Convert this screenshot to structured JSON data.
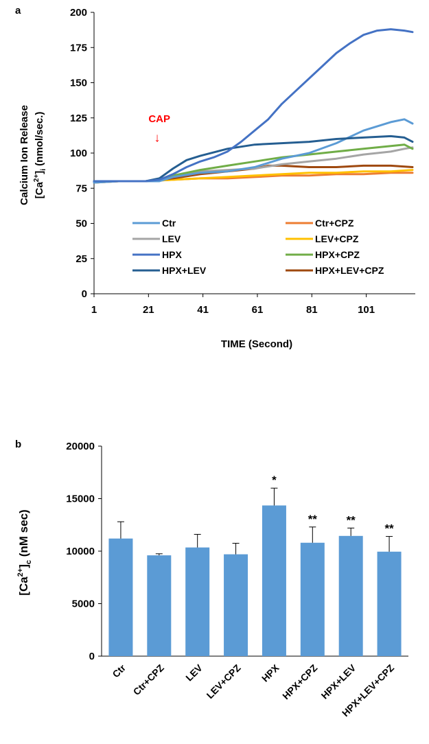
{
  "chart_data": [
    {
      "panel_label": "a",
      "type": "line",
      "xlabel": "TIME (Second)",
      "ylabel_line1": "Calcium Ion Release",
      "ylabel_line2_pre": "[Ca",
      "ylabel_line2_sup": "2+",
      "ylabel_line2_mid": "]",
      "ylabel_line2_sub": "i",
      "ylabel_line2_post": " (nmol/sec.)",
      "xlim": [
        1,
        119
      ],
      "ylim": [
        0,
        200
      ],
      "xticks": [
        1,
        21,
        41,
        61,
        81,
        101
      ],
      "yticks": [
        0,
        25,
        50,
        75,
        100,
        125,
        150,
        175,
        200
      ],
      "annotation": {
        "text": "CAP",
        "arrow": "↓",
        "x": 25,
        "color": "#ff0000"
      },
      "legend_placement": "inside-bottom",
      "grid": false,
      "series": [
        {
          "name": "Ctr",
          "color": "#5b9bd5",
          "x": [
            1,
            10,
            20,
            25,
            30,
            40,
            50,
            60,
            70,
            80,
            90,
            100,
            105,
            110,
            115,
            118
          ],
          "y": [
            79,
            80,
            80,
            80,
            83,
            86,
            87,
            90,
            96,
            100,
            107,
            116,
            119,
            122,
            124,
            121
          ]
        },
        {
          "name": "LEV",
          "color": "#a5a5a5",
          "x": [
            1,
            10,
            20,
            25,
            30,
            40,
            50,
            60,
            70,
            80,
            90,
            100,
            110,
            115,
            118
          ],
          "y": [
            79,
            80,
            80,
            81,
            84,
            87,
            88,
            89,
            92,
            94,
            96,
            99,
            101,
            103,
            104
          ]
        },
        {
          "name": "HPX",
          "color": "#4472c4",
          "x": [
            1,
            10,
            20,
            25,
            30,
            35,
            40,
            45,
            50,
            55,
            60,
            65,
            70,
            75,
            80,
            85,
            90,
            95,
            100,
            105,
            110,
            115,
            118
          ],
          "y": [
            80,
            80,
            80,
            81,
            85,
            90,
            94,
            97,
            101,
            108,
            116,
            124,
            135,
            144,
            153,
            162,
            171,
            178,
            184,
            187,
            188,
            187,
            186
          ]
        },
        {
          "name": "HPX+LEV",
          "color": "#255e91",
          "x": [
            1,
            10,
            20,
            25,
            30,
            35,
            40,
            50,
            60,
            70,
            80,
            90,
            100,
            110,
            115,
            118
          ],
          "y": [
            80,
            80,
            80,
            82,
            89,
            95,
            98,
            103,
            106,
            107,
            108,
            110,
            111,
            112,
            111,
            108
          ]
        },
        {
          "name": "Ctr+CPZ",
          "color": "#ed7d31",
          "x": [
            1,
            10,
            20,
            30,
            40,
            50,
            60,
            70,
            80,
            90,
            100,
            110,
            118
          ],
          "y": [
            79,
            80,
            80,
            81,
            82,
            82,
            83,
            84,
            84,
            85,
            85,
            86,
            86
          ]
        },
        {
          "name": "LEV+CPZ",
          "color": "#ffc000",
          "x": [
            1,
            10,
            20,
            30,
            40,
            50,
            60,
            70,
            80,
            90,
            100,
            110,
            118
          ],
          "y": [
            79,
            80,
            80,
            81,
            82,
            83,
            84,
            85,
            86,
            86,
            87,
            87,
            88
          ]
        },
        {
          "name": "HPX+CPZ",
          "color": "#70ad47",
          "x": [
            1,
            10,
            20,
            25,
            30,
            40,
            50,
            60,
            70,
            80,
            90,
            100,
            110,
            115,
            118
          ],
          "y": [
            80,
            80,
            80,
            81,
            84,
            88,
            91,
            94,
            97,
            99,
            101,
            103,
            105,
            106,
            103
          ]
        },
        {
          "name": "HPX+LEV+CPZ",
          "color": "#9e480e",
          "x": [
            1,
            10,
            20,
            30,
            40,
            50,
            60,
            65,
            70,
            80,
            90,
            100,
            110,
            118
          ],
          "y": [
            80,
            80,
            80,
            82,
            85,
            87,
            89,
            91,
            91,
            90,
            90,
            91,
            91,
            90
          ]
        }
      ]
    },
    {
      "panel_label": "b",
      "type": "bar",
      "ylabel_pre": "[Ca",
      "ylabel_sup": "2+",
      "ylabel_mid": "]",
      "ylabel_sub": "c",
      "ylabel_post": "  (nM sec)",
      "ylim": [
        0,
        20000
      ],
      "yticks": [
        0,
        5000,
        10000,
        15000,
        20000
      ],
      "bar_color": "#5b9bd5",
      "grid": false,
      "categories": [
        "Ctr",
        "Ctr+CPZ",
        "LEV",
        "LEV+CPZ",
        "HPX",
        "HPX+CPZ",
        "HPX+LEV",
        "HPX+LEV+CPZ"
      ],
      "values": [
        11200,
        9600,
        10350,
        9700,
        14350,
        10800,
        11450,
        9950
      ],
      "errors": [
        1600,
        150,
        1250,
        1050,
        1650,
        1500,
        750,
        1450
      ],
      "significance": [
        "",
        "",
        "",
        "",
        "*",
        "**",
        "**",
        "**"
      ]
    }
  ]
}
